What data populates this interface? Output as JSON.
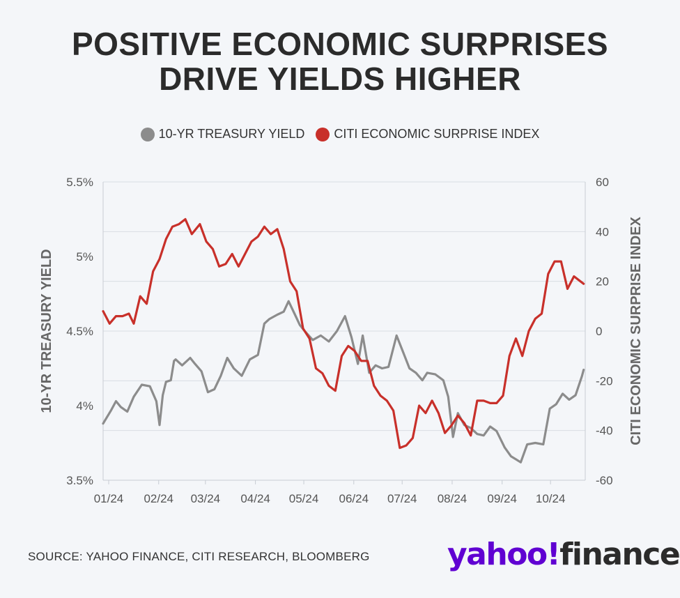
{
  "title_line1": "POSITIVE ECONOMIC SURPRISES",
  "title_line2": "DRIVE YIELDS HIGHER",
  "source": "SOURCE: YAHOO FINANCE, CITI RESEARCH, BLOOMBERG",
  "logo": {
    "yahoo": "yahoo!",
    "finance": "finance"
  },
  "colors": {
    "treasury": "#8c8c8c",
    "citi": "#c8302a",
    "grid": "#d9dde3"
  },
  "chart_data": {
    "type": "line",
    "x_tick_labels": [
      "01/24",
      "02/24",
      "03/24",
      "04/24",
      "05/24",
      "06/24",
      "07/24",
      "08/24",
      "09/24",
      "10/24"
    ],
    "y_left": {
      "label": "10-YR TREASURY YIELD",
      "ticks": [
        "3.5%",
        "4%",
        "4.5%",
        "5%",
        "5.5%"
      ],
      "range": [
        3.5,
        5.5
      ]
    },
    "y_right": {
      "label": "CITI ECONOMIC SURPRISE INDEX",
      "ticks": [
        "-60",
        "-40",
        "-20",
        "0",
        "20",
        "40",
        "60"
      ],
      "range": [
        -60,
        60
      ]
    },
    "grid": "horizontal",
    "legend_position": "top",
    "series": [
      {
        "name": "10-YR TREASURY YIELD",
        "axis": "left",
        "color": "#8c8c8c",
        "x": [
          "2024-01-01",
          "2024-01-06",
          "2024-01-09",
          "2024-01-12",
          "2024-01-16",
          "2024-01-20",
          "2024-01-25",
          "2024-01-30",
          "2024-02-03",
          "2024-02-05",
          "2024-02-07",
          "2024-02-09",
          "2024-02-12",
          "2024-02-14",
          "2024-02-15",
          "2024-02-19",
          "2024-02-24",
          "2024-02-27",
          "2024-03-02",
          "2024-03-06",
          "2024-03-10",
          "2024-03-14",
          "2024-03-18",
          "2024-03-22",
          "2024-03-27",
          "2024-04-01",
          "2024-04-06",
          "2024-04-10",
          "2024-04-13",
          "2024-04-18",
          "2024-04-22",
          "2024-04-25",
          "2024-04-29",
          "2024-05-02",
          "2024-05-05",
          "2024-05-10",
          "2024-05-15",
          "2024-05-20",
          "2024-05-25",
          "2024-05-30",
          "2024-06-03",
          "2024-06-07",
          "2024-06-10",
          "2024-06-14",
          "2024-06-18",
          "2024-06-22",
          "2024-06-26",
          "2024-07-01",
          "2024-07-05",
          "2024-07-09",
          "2024-07-13",
          "2024-07-17",
          "2024-07-20",
          "2024-07-25",
          "2024-07-30",
          "2024-08-02",
          "2024-08-05",
          "2024-08-08",
          "2024-08-12",
          "2024-08-16",
          "2024-08-20",
          "2024-08-24",
          "2024-08-28",
          "2024-09-01",
          "2024-09-06",
          "2024-09-10",
          "2024-09-13",
          "2024-09-16",
          "2024-09-20",
          "2024-09-25",
          "2024-09-30",
          "2024-10-04",
          "2024-10-08",
          "2024-10-12",
          "2024-10-16",
          "2024-10-20",
          "2024-10-24",
          "2024-10-25"
        ],
        "y": [
          3.88,
          3.97,
          4.03,
          3.99,
          3.96,
          4.06,
          4.14,
          4.13,
          4.03,
          3.87,
          4.07,
          4.16,
          4.17,
          4.3,
          4.31,
          4.27,
          4.32,
          4.28,
          4.23,
          4.09,
          4.11,
          4.2,
          4.32,
          4.25,
          4.2,
          4.31,
          4.34,
          4.55,
          4.58,
          4.61,
          4.63,
          4.7,
          4.61,
          4.54,
          4.5,
          4.44,
          4.47,
          4.43,
          4.5,
          4.6,
          4.46,
          4.28,
          4.47,
          4.22,
          4.27,
          4.25,
          4.26,
          4.47,
          4.36,
          4.25,
          4.22,
          4.17,
          4.22,
          4.21,
          4.17,
          4.06,
          3.79,
          3.95,
          3.87,
          3.85,
          3.81,
          3.8,
          3.86,
          3.83,
          3.72,
          3.66,
          3.64,
          3.62,
          3.74,
          3.75,
          3.74,
          3.98,
          4.01,
          4.08,
          4.04,
          4.07,
          4.2,
          4.24
        ]
      },
      {
        "name": "CITI ECONOMIC SURPRISE INDEX",
        "axis": "right",
        "color": "#c8302a",
        "x": [
          "2024-01-01",
          "2024-01-05",
          "2024-01-09",
          "2024-01-13",
          "2024-01-17",
          "2024-01-20",
          "2024-01-24",
          "2024-01-28",
          "2024-02-01",
          "2024-02-05",
          "2024-02-09",
          "2024-02-13",
          "2024-02-17",
          "2024-02-21",
          "2024-02-25",
          "2024-03-01",
          "2024-03-05",
          "2024-03-09",
          "2024-03-13",
          "2024-03-17",
          "2024-03-21",
          "2024-03-25",
          "2024-03-29",
          "2024-04-02",
          "2024-04-06",
          "2024-04-10",
          "2024-04-14",
          "2024-04-18",
          "2024-04-22",
          "2024-04-26",
          "2024-04-30",
          "2024-05-04",
          "2024-05-08",
          "2024-05-12",
          "2024-05-16",
          "2024-05-20",
          "2024-05-24",
          "2024-05-28",
          "2024-06-01",
          "2024-06-05",
          "2024-06-09",
          "2024-06-13",
          "2024-06-17",
          "2024-06-21",
          "2024-06-25",
          "2024-06-29",
          "2024-07-03",
          "2024-07-07",
          "2024-07-11",
          "2024-07-15",
          "2024-07-19",
          "2024-07-23",
          "2024-07-27",
          "2024-07-31",
          "2024-08-04",
          "2024-08-08",
          "2024-08-12",
          "2024-08-16",
          "2024-08-20",
          "2024-08-24",
          "2024-08-28",
          "2024-09-01",
          "2024-09-05",
          "2024-09-09",
          "2024-09-13",
          "2024-09-17",
          "2024-09-21",
          "2024-09-25",
          "2024-09-29",
          "2024-10-03",
          "2024-10-07",
          "2024-10-11",
          "2024-10-15",
          "2024-10-19",
          "2024-10-23",
          "2024-10-25"
        ],
        "y": [
          8,
          3,
          6,
          6,
          7,
          3,
          14,
          11,
          24,
          29,
          37,
          42,
          43,
          45,
          39,
          43,
          36,
          33,
          26,
          27,
          31,
          26,
          31,
          36,
          38,
          42,
          39,
          41,
          33,
          20,
          16,
          1,
          -3,
          -15,
          -17,
          -22,
          -24,
          -10,
          -6,
          -8,
          -12,
          -12,
          -22,
          -26,
          -28,
          -32,
          -47,
          -46,
          -43,
          -30,
          -33,
          -28,
          -33,
          -41,
          -38,
          -34,
          -37,
          -42,
          -28,
          -28,
          -29,
          -29,
          -26,
          -10,
          -3,
          -10,
          0,
          5,
          7,
          23,
          28,
          28,
          17,
          22,
          20,
          19
        ]
      }
    ]
  }
}
